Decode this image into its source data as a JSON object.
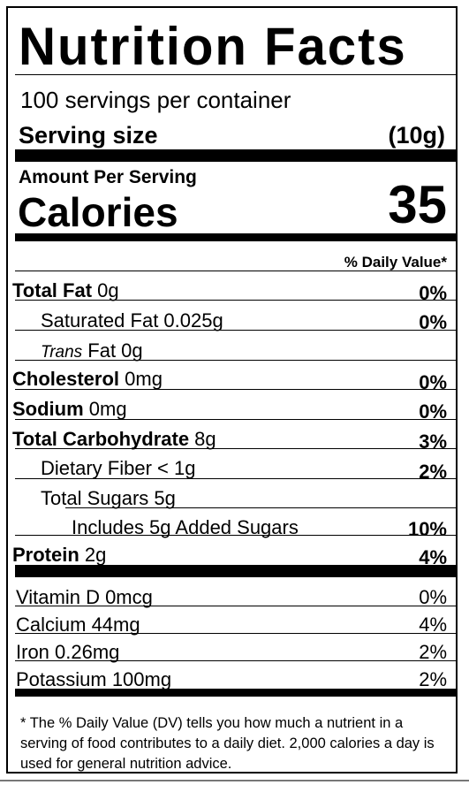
{
  "label": {
    "title": "Nutrition Facts",
    "servings_per_container": "100 servings per container",
    "serving_size_label": "Serving size",
    "serving_size_value": "(10g)",
    "amount_per_serving": "Amount Per Serving",
    "calories_label": "Calories",
    "calories_value": "35",
    "daily_value_header": "% Daily Value*"
  },
  "nutrients": {
    "total_fat": {
      "name": "Total Fat",
      "amount": " 0g",
      "dv": "0%"
    },
    "saturated_fat": {
      "name": "Saturated Fat 0.025g",
      "dv": "0%"
    },
    "trans_fat": {
      "prefix": "Trans",
      "name": " Fat 0g"
    },
    "cholesterol": {
      "name": "Cholesterol",
      "amount": " 0mg",
      "dv": "0%"
    },
    "sodium": {
      "name": "Sodium",
      "amount": " 0mg",
      "dv": "0%"
    },
    "total_carbohydrate": {
      "name": "Total Carbohydrate",
      "amount": " 8g",
      "dv": "3%"
    },
    "dietary_fiber": {
      "name": "Dietary Fiber < 1g",
      "dv": "2%"
    },
    "total_sugars": {
      "name": "Total Sugars 5g"
    },
    "added_sugars": {
      "name": "Includes 5g Added Sugars",
      "dv": "10%"
    },
    "protein": {
      "name": "Protein",
      "amount": " 2g",
      "dv": "4%"
    }
  },
  "vitamins": {
    "vitamin_d": {
      "name": "Vitamin D 0mcg",
      "dv": "0%"
    },
    "calcium": {
      "name": "Calcium 44mg",
      "dv": "4%"
    },
    "iron": {
      "name": "Iron 0.26mg",
      "dv": "2%"
    },
    "potassium": {
      "name": "Potassium 100mg",
      "dv": "2%"
    }
  },
  "footnote": "* The % Daily Value (DV) tells you how much a nutrient in a serving of food contributes to a daily diet. 2,000 calories a day is used for general nutrition advice."
}
